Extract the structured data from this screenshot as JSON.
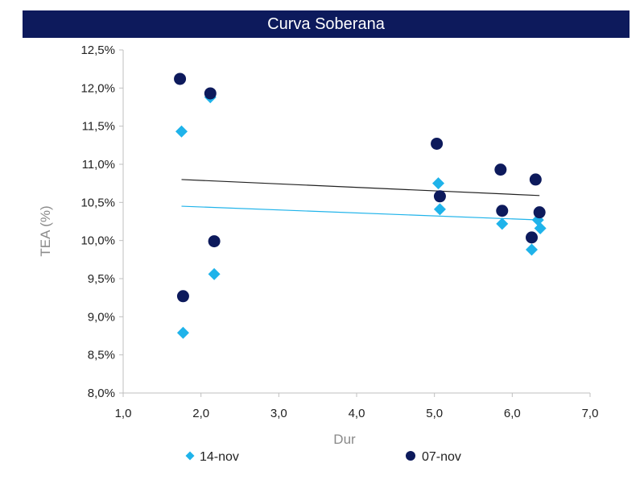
{
  "chart_data": {
    "type": "scatter",
    "title": "Curva Soberana",
    "xlabel": "Dur",
    "ylabel": "TEA (%)",
    "xlim": [
      1.0,
      7.0
    ],
    "ylim": [
      8.0,
      12.5
    ],
    "x_ticks": [
      "1,0",
      "2,0",
      "3,0",
      "4,0",
      "5,0",
      "6,0",
      "7,0"
    ],
    "x_tick_values": [
      1,
      2,
      3,
      4,
      5,
      6,
      7
    ],
    "y_ticks": [
      "8,0%",
      "8,5%",
      "9,0%",
      "9,5%",
      "10,0%",
      "10,5%",
      "11,0%",
      "11,5%",
      "12,0%",
      "12,5%"
    ],
    "y_tick_values": [
      8.0,
      8.5,
      9.0,
      9.5,
      10.0,
      10.5,
      11.0,
      11.5,
      12.0,
      12.5
    ],
    "legend_position": "bottom",
    "series": [
      {
        "name": "14-nov",
        "marker": "diamond",
        "color": "#1fb3ea",
        "points": [
          [
            1.75,
            11.43
          ],
          [
            1.77,
            8.79
          ],
          [
            2.12,
            11.88
          ],
          [
            2.17,
            9.56
          ],
          [
            5.05,
            10.75
          ],
          [
            5.07,
            10.41
          ],
          [
            5.87,
            10.22
          ],
          [
            6.25,
            9.88
          ],
          [
            6.33,
            10.27
          ],
          [
            6.36,
            10.16
          ]
        ],
        "trend": {
          "x": [
            1.75,
            6.35
          ],
          "y": [
            10.45,
            10.27
          ]
        }
      },
      {
        "name": "07-nov",
        "marker": "circle",
        "color": "#0d1a5c",
        "points": [
          [
            1.73,
            12.12
          ],
          [
            1.77,
            9.27
          ],
          [
            2.12,
            11.93
          ],
          [
            2.17,
            9.99
          ],
          [
            5.03,
            11.27
          ],
          [
            5.07,
            10.58
          ],
          [
            5.85,
            10.93
          ],
          [
            5.87,
            10.39
          ],
          [
            6.25,
            10.04
          ],
          [
            6.3,
            10.8
          ],
          [
            6.35,
            10.37
          ]
        ],
        "trend": {
          "x": [
            1.75,
            6.35
          ],
          "y": [
            10.8,
            10.59
          ],
          "color": "#222222"
        }
      }
    ]
  }
}
